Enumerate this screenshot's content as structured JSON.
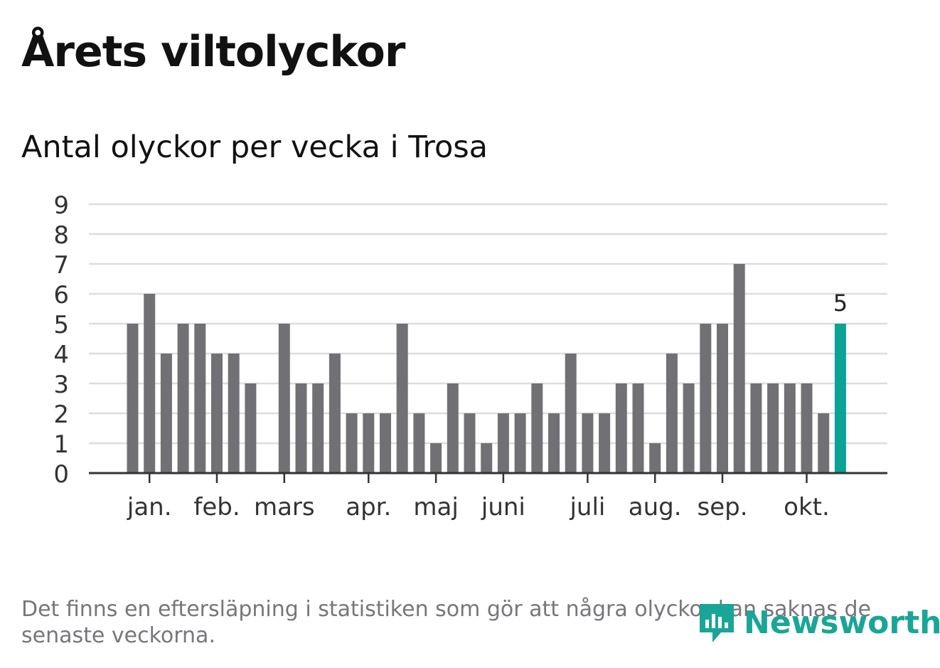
{
  "title": "Årets viltolyckor",
  "subtitle": "Antal olyckor per vecka i Trosa",
  "footnote": "Det finns en eftersläpning i statistiken som gör att några olyckor kan saknas de senaste veckorna.",
  "logo": {
    "text": "Newsworthy",
    "icon": "newsworthy-logo-icon"
  },
  "colors": {
    "bar": "#717074",
    "highlight": "#0aa396",
    "grid": "#dddddd",
    "axis": "#333333",
    "text": "#333333"
  },
  "chart_data": {
    "type": "bar",
    "title": "Antal olyckor per vecka i Trosa",
    "xlabel": "",
    "ylabel": "",
    "ylim": [
      0,
      9
    ],
    "y_ticks": [
      "0",
      "1",
      "2",
      "3",
      "4",
      "5",
      "6",
      "7",
      "8",
      "9"
    ],
    "values": [
      5,
      6,
      4,
      5,
      5,
      4,
      4,
      3,
      0,
      5,
      3,
      3,
      4,
      2,
      2,
      2,
      5,
      2,
      1,
      3,
      2,
      1,
      2,
      2,
      3,
      2,
      4,
      2,
      2,
      3,
      3,
      1,
      4,
      3,
      5,
      5,
      7,
      3,
      3,
      3,
      3,
      2,
      5
    ],
    "highlight_index": 42,
    "highlight_label": "5",
    "month_labels": [
      {
        "label": "jan.",
        "week": 1
      },
      {
        "label": "feb.",
        "week": 5
      },
      {
        "label": "mars",
        "week": 9
      },
      {
        "label": "apr.",
        "week": 14
      },
      {
        "label": "maj",
        "week": 18
      },
      {
        "label": "juni",
        "week": 22
      },
      {
        "label": "juli",
        "week": 27
      },
      {
        "label": "aug.",
        "week": 31
      },
      {
        "label": "sep.",
        "week": 35
      },
      {
        "label": "okt.",
        "week": 40
      }
    ]
  }
}
